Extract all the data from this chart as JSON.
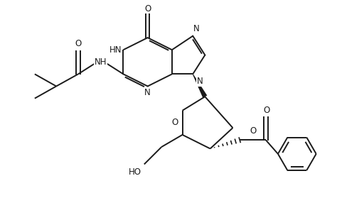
{
  "bg_color": "#ffffff",
  "line_color": "#1a1a1a",
  "line_width": 1.4,
  "font_size": 8.5,
  "figsize": [
    4.74,
    3.1
  ],
  "dpi": 100,
  "xlim": [
    0,
    9.5
  ],
  "ylim": [
    0,
    6.2
  ]
}
